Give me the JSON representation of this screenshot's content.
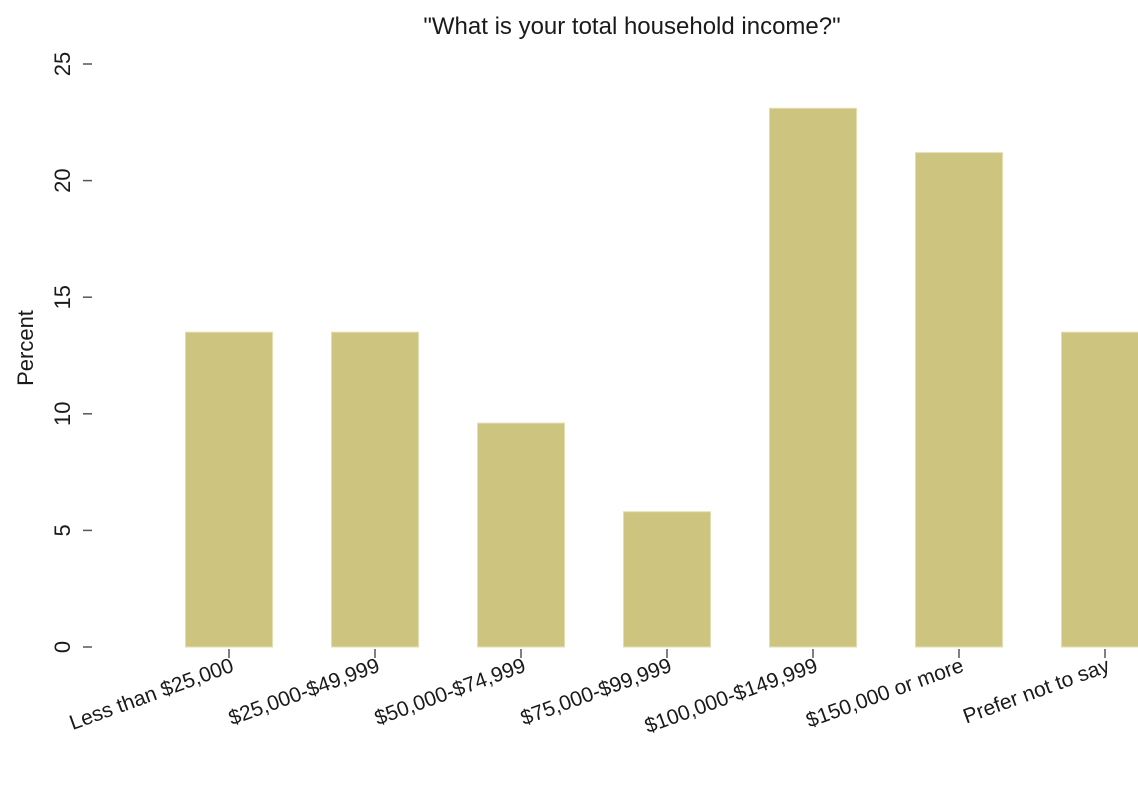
{
  "chart_data": {
    "type": "bar",
    "title": "\"What is your total household income?\"",
    "xlabel": "",
    "ylabel": "Percent",
    "ylim": [
      0,
      25
    ],
    "yticks": [
      0,
      5,
      10,
      15,
      20,
      25
    ],
    "grid": false,
    "categories": [
      "Less than $25,000",
      "$25,000-$49,999",
      "$50,000-$74,999",
      "$75,000-$99,999",
      "$100,000-$149,999",
      "$150,000 or more",
      "Prefer not to say"
    ],
    "values": [
      13.5,
      13.5,
      9.6,
      5.8,
      23.1,
      21.2,
      13.5
    ],
    "bar_color": "#ccc47f"
  }
}
